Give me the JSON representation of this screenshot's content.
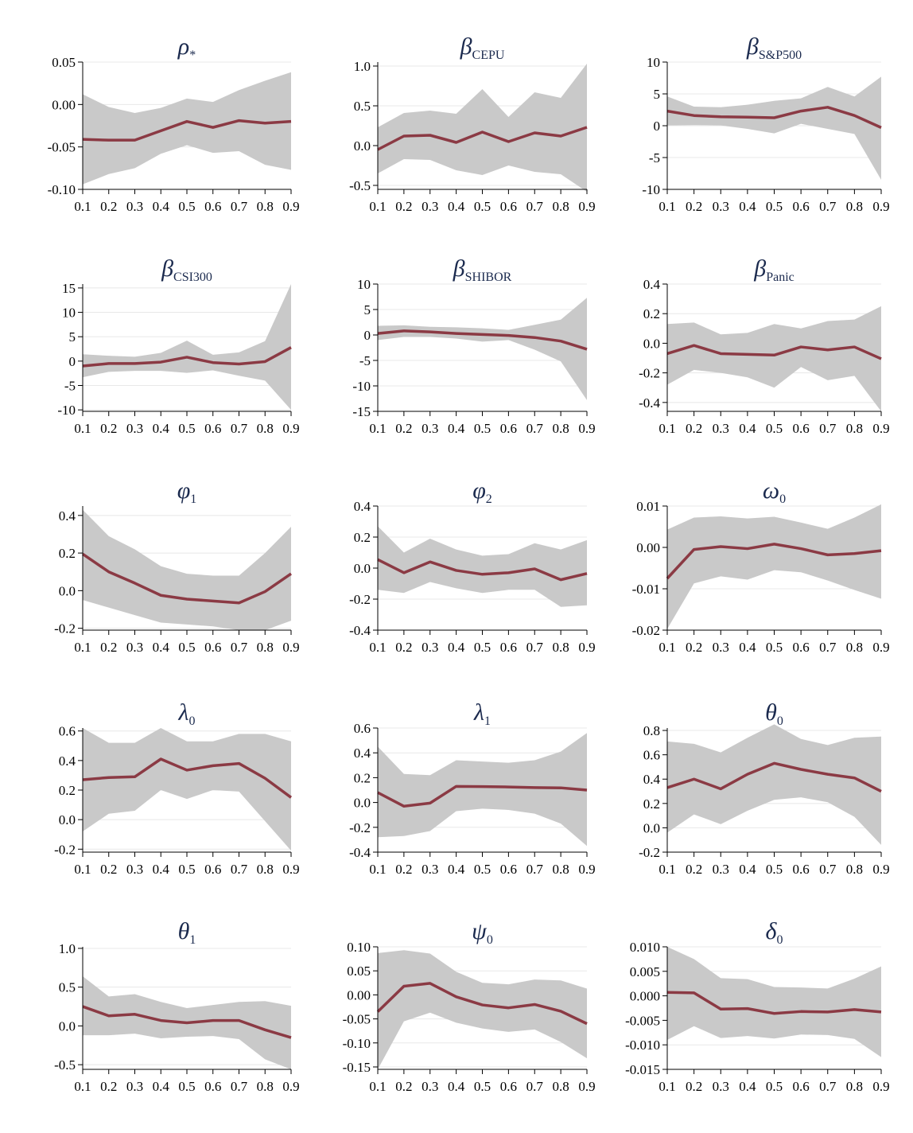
{
  "chart_data": [
    {
      "type": "line",
      "title": "ρ",
      "title_sub": "*",
      "x": [
        0.1,
        0.2,
        0.3,
        0.4,
        0.5,
        0.6,
        0.7,
        0.8,
        0.9
      ],
      "series": [
        {
          "values": [
            -0.041,
            -0.042,
            -0.042,
            -0.031,
            -0.02,
            -0.027,
            -0.019,
            -0.022,
            -0.02
          ]
        }
      ],
      "band_upper": [
        0.012,
        -0.003,
        -0.01,
        -0.004,
        0.007,
        0.003,
        0.017,
        0.028,
        0.038
      ],
      "band_lower": [
        -0.094,
        -0.082,
        -0.075,
        -0.058,
        -0.048,
        -0.057,
        -0.055,
        -0.071,
        -0.077
      ],
      "ylim": [
        -0.1,
        0.05
      ],
      "yticks": [
        -0.1,
        -0.05,
        0.0,
        0.05
      ],
      "ytick_labels": [
        "-0.10",
        "-0.05",
        "0.00",
        "0.05"
      ],
      "xtick_labels": [
        "0.1",
        "0.2",
        "0.3",
        "0.4",
        "0.5",
        "0.6",
        "0.7",
        "0.8",
        "0.9"
      ],
      "grid": true
    },
    {
      "type": "line",
      "title": "β",
      "title_sub": "CEPU",
      "x": [
        0.1,
        0.2,
        0.3,
        0.4,
        0.5,
        0.6,
        0.7,
        0.8,
        0.9
      ],
      "series": [
        {
          "values": [
            -0.05,
            0.12,
            0.13,
            0.04,
            0.17,
            0.05,
            0.16,
            0.12,
            0.23
          ]
        }
      ],
      "band_upper": [
        0.23,
        0.41,
        0.44,
        0.4,
        0.71,
        0.36,
        0.67,
        0.6,
        1.03
      ],
      "band_lower": [
        -0.35,
        -0.17,
        -0.18,
        -0.31,
        -0.37,
        -0.25,
        -0.33,
        -0.36,
        -0.58
      ],
      "ylim": [
        -0.55,
        1.05
      ],
      "yticks": [
        -0.5,
        0.0,
        0.5,
        1.0
      ],
      "ytick_labels": [
        "-0.5",
        "0.0",
        "0.5",
        "1.0"
      ],
      "xtick_labels": [
        "0.1",
        "0.2",
        "0.3",
        "0.4",
        "0.5",
        "0.6",
        "0.7",
        "0.8",
        "0.9"
      ],
      "grid": true
    },
    {
      "type": "line",
      "title": "β",
      "title_sub": "S&P500",
      "x": [
        0.1,
        0.2,
        0.3,
        0.4,
        0.5,
        0.6,
        0.7,
        0.8,
        0.9
      ],
      "series": [
        {
          "values": [
            2.3,
            1.6,
            1.4,
            1.35,
            1.25,
            2.3,
            2.9,
            1.6,
            -0.3
          ]
        }
      ],
      "band_upper": [
        4.6,
        3.0,
        2.9,
        3.3,
        3.9,
        4.3,
        6.1,
        4.6,
        7.7
      ],
      "band_lower": [
        0.05,
        0.1,
        0.05,
        -0.5,
        -1.2,
        0.3,
        -0.5,
        -1.3,
        -8.5
      ],
      "ylim": [
        -10,
        10
      ],
      "yticks": [
        -10,
        -5,
        0,
        5,
        10
      ],
      "ytick_labels": [
        "-10",
        "-5",
        "0",
        "5",
        "10"
      ],
      "xtick_labels": [
        "0.1",
        "0.2",
        "0.3",
        "0.4",
        "0.5",
        "0.6",
        "0.7",
        "0.8",
        "0.9"
      ],
      "grid": true
    },
    {
      "type": "line",
      "title": "β",
      "title_sub": "CSI300",
      "x": [
        0.1,
        0.2,
        0.3,
        0.4,
        0.5,
        0.6,
        0.7,
        0.8,
        0.9
      ],
      "series": [
        {
          "values": [
            -1.0,
            -0.5,
            -0.5,
            -0.2,
            0.8,
            -0.3,
            -0.6,
            -0.1,
            2.8
          ]
        }
      ],
      "band_upper": [
        1.4,
        1.1,
        0.9,
        1.7,
        4.2,
        1.3,
        1.8,
        4.1,
        15.8
      ],
      "band_lower": [
        -3.3,
        -2.2,
        -2.0,
        -2.0,
        -2.4,
        -1.9,
        -3.0,
        -4.0,
        -10.0
      ],
      "ylim": [
        -10.3,
        15.8
      ],
      "yticks": [
        -10,
        -5,
        0,
        5,
        10,
        15
      ],
      "ytick_labels": [
        "-10",
        "-5",
        "0",
        "5",
        "10",
        "15"
      ],
      "xtick_labels": [
        "0.1",
        "0.2",
        "0.3",
        "0.4",
        "0.5",
        "0.6",
        "0.7",
        "0.8",
        "0.9"
      ],
      "grid": true
    },
    {
      "type": "line",
      "title": "β",
      "title_sub": "SHIBOR",
      "x": [
        0.1,
        0.2,
        0.3,
        0.4,
        0.5,
        0.6,
        0.7,
        0.8,
        0.9
      ],
      "series": [
        {
          "values": [
            0.3,
            0.8,
            0.6,
            0.3,
            0.1,
            -0.1,
            -0.5,
            -1.2,
            -2.8
          ]
        }
      ],
      "band_upper": [
        1.8,
        1.9,
        1.6,
        1.5,
        1.3,
        1.0,
        2.0,
        3.0,
        7.3
      ],
      "band_lower": [
        -1.0,
        -0.4,
        -0.4,
        -0.7,
        -1.3,
        -1.0,
        -2.9,
        -5.2,
        -12.8
      ],
      "ylim": [
        -15,
        10
      ],
      "yticks": [
        -15,
        -10,
        -5,
        0,
        5,
        10
      ],
      "ytick_labels": [
        "-15",
        "-10",
        "-5",
        "0",
        "5",
        "10"
      ],
      "xtick_labels": [
        "0.1",
        "0.2",
        "0.3",
        "0.4",
        "0.5",
        "0.6",
        "0.7",
        "0.8",
        "0.9"
      ],
      "grid": true
    },
    {
      "type": "line",
      "title": "β",
      "title_sub": "Panic",
      "x": [
        0.1,
        0.2,
        0.3,
        0.4,
        0.5,
        0.6,
        0.7,
        0.8,
        0.9
      ],
      "series": [
        {
          "values": [
            -0.07,
            -0.015,
            -0.07,
            -0.075,
            -0.08,
            -0.025,
            -0.045,
            -0.025,
            -0.105
          ]
        }
      ],
      "band_upper": [
        0.13,
        0.14,
        0.06,
        0.07,
        0.13,
        0.1,
        0.15,
        0.16,
        0.25
      ],
      "band_lower": [
        -0.28,
        -0.18,
        -0.2,
        -0.23,
        -0.3,
        -0.16,
        -0.25,
        -0.22,
        -0.46
      ],
      "ylim": [
        -0.46,
        0.4
      ],
      "yticks": [
        -0.4,
        -0.2,
        0.0,
        0.2,
        0.4
      ],
      "ytick_labels": [
        "-0.4",
        "-0.2",
        "0.0",
        "0.2",
        "0.4"
      ],
      "xtick_labels": [
        "0.1",
        "0.2",
        "0.3",
        "0.4",
        "0.5",
        "0.6",
        "0.7",
        "0.8",
        "0.9"
      ],
      "grid": true
    },
    {
      "type": "line",
      "title": "φ",
      "title_sub": "1",
      "x": [
        0.1,
        0.2,
        0.3,
        0.4,
        0.5,
        0.6,
        0.7,
        0.8,
        0.9
      ],
      "series": [
        {
          "values": [
            0.195,
            0.1,
            0.04,
            -0.025,
            -0.045,
            -0.055,
            -0.065,
            -0.005,
            0.09
          ]
        }
      ],
      "band_upper": [
        0.43,
        0.29,
        0.22,
        0.13,
        0.09,
        0.08,
        0.08,
        0.2,
        0.34
      ],
      "band_lower": [
        -0.05,
        -0.09,
        -0.13,
        -0.17,
        -0.18,
        -0.19,
        -0.21,
        -0.21,
        -0.16
      ],
      "ylim": [
        -0.21,
        0.45
      ],
      "yticks": [
        -0.2,
        0.0,
        0.2,
        0.4
      ],
      "ytick_labels": [
        "-0.2",
        "0.0",
        "0.2",
        "0.4"
      ],
      "xtick_labels": [
        "0.1",
        "0.2",
        "0.3",
        "0.4",
        "0.5",
        "0.6",
        "0.7",
        "0.8",
        "0.9"
      ],
      "grid": true
    },
    {
      "type": "line",
      "title": "φ",
      "title_sub": "2",
      "x": [
        0.1,
        0.2,
        0.3,
        0.4,
        0.5,
        0.6,
        0.7,
        0.8,
        0.9
      ],
      "series": [
        {
          "values": [
            0.055,
            -0.03,
            0.04,
            -0.015,
            -0.04,
            -0.03,
            -0.005,
            -0.075,
            -0.035
          ]
        }
      ],
      "band_upper": [
        0.27,
        0.1,
        0.19,
        0.12,
        0.08,
        0.09,
        0.16,
        0.12,
        0.18
      ],
      "band_lower": [
        -0.14,
        -0.16,
        -0.09,
        -0.13,
        -0.16,
        -0.14,
        -0.14,
        -0.25,
        -0.24
      ],
      "ylim": [
        -0.4,
        0.4
      ],
      "yticks": [
        -0.4,
        -0.2,
        0.0,
        0.2,
        0.4
      ],
      "ytick_labels": [
        "-0.4",
        "-0.2",
        "0.0",
        "0.2",
        "0.4"
      ],
      "xtick_labels": [
        "0.1",
        "0.2",
        "0.3",
        "0.4",
        "0.5",
        "0.6",
        "0.7",
        "0.8",
        "0.9"
      ],
      "grid": true
    },
    {
      "type": "line",
      "title": "ω",
      "title_sub": "0",
      "x": [
        0.1,
        0.2,
        0.3,
        0.4,
        0.5,
        0.6,
        0.7,
        0.8,
        0.9
      ],
      "series": [
        {
          "values": [
            -0.0075,
            -0.0005,
            0.0002,
            -0.0003,
            0.0008,
            -0.0003,
            -0.0018,
            -0.0015,
            -0.0008
          ]
        }
      ],
      "band_upper": [
        0.0043,
        0.0072,
        0.0075,
        0.007,
        0.0074,
        0.006,
        0.0045,
        0.0072,
        0.0104
      ],
      "band_lower": [
        -0.0197,
        -0.0087,
        -0.007,
        -0.0078,
        -0.0055,
        -0.006,
        -0.008,
        -0.0103,
        -0.0124
      ],
      "ylim": [
        -0.02,
        0.01
      ],
      "yticks": [
        -0.02,
        -0.01,
        0.0,
        0.01
      ],
      "ytick_labels": [
        "-0.02",
        "-0.01",
        "0.00",
        "0.01"
      ],
      "xtick_labels": [
        "0.1",
        "0.2",
        "0.3",
        "0.4",
        "0.5",
        "0.6",
        "0.7",
        "0.8",
        "0.9"
      ],
      "grid": true
    },
    {
      "type": "line",
      "title": "λ",
      "title_sub": "0",
      "x": [
        0.1,
        0.2,
        0.3,
        0.4,
        0.5,
        0.6,
        0.7,
        0.8,
        0.9
      ],
      "series": [
        {
          "values": [
            0.27,
            0.285,
            0.29,
            0.41,
            0.335,
            0.365,
            0.38,
            0.28,
            0.15
          ]
        }
      ],
      "band_upper": [
        0.62,
        0.52,
        0.52,
        0.62,
        0.53,
        0.53,
        0.58,
        0.58,
        0.53
      ],
      "band_lower": [
        -0.08,
        0.04,
        0.06,
        0.2,
        0.14,
        0.2,
        0.19,
        -0.01,
        -0.21
      ],
      "ylim": [
        -0.22,
        0.62
      ],
      "yticks": [
        -0.2,
        0.0,
        0.2,
        0.4,
        0.6
      ],
      "ytick_labels": [
        "-0.2",
        "0.0",
        "0.2",
        "0.4",
        "0.6"
      ],
      "xtick_labels": [
        "0.1",
        "0.2",
        "0.3",
        "0.4",
        "0.5",
        "0.6",
        "0.7",
        "0.8",
        "0.9"
      ],
      "grid": true
    },
    {
      "type": "line",
      "title": "λ",
      "title_sub": "1",
      "x": [
        0.1,
        0.2,
        0.3,
        0.4,
        0.5,
        0.6,
        0.7,
        0.8,
        0.9
      ],
      "series": [
        {
          "values": [
            0.08,
            -0.03,
            -0.005,
            0.13,
            0.128,
            0.125,
            0.12,
            0.118,
            0.1
          ]
        }
      ],
      "band_upper": [
        0.45,
        0.23,
        0.22,
        0.34,
        0.33,
        0.32,
        0.34,
        0.41,
        0.56
      ],
      "band_lower": [
        -0.28,
        -0.27,
        -0.23,
        -0.07,
        -0.05,
        -0.06,
        -0.09,
        -0.17,
        -0.35
      ],
      "ylim": [
        -0.4,
        0.6
      ],
      "yticks": [
        -0.4,
        -0.2,
        0.0,
        0.2,
        0.4,
        0.6
      ],
      "ytick_labels": [
        "-0.4",
        "-0.2",
        "0.0",
        "0.2",
        "0.4",
        "0.6"
      ],
      "xtick_labels": [
        "0.1",
        "0.2",
        "0.3",
        "0.4",
        "0.5",
        "0.6",
        "0.7",
        "0.8",
        "0.9"
      ],
      "grid": true
    },
    {
      "type": "line",
      "title": "θ",
      "title_sub": "0",
      "x": [
        0.1,
        0.2,
        0.3,
        0.4,
        0.5,
        0.6,
        0.7,
        0.8,
        0.9
      ],
      "series": [
        {
          "values": [
            0.33,
            0.4,
            0.32,
            0.44,
            0.53,
            0.48,
            0.44,
            0.41,
            0.3
          ]
        }
      ],
      "band_upper": [
        0.71,
        0.69,
        0.62,
        0.74,
        0.85,
        0.73,
        0.68,
        0.74,
        0.75
      ],
      "band_lower": [
        -0.04,
        0.11,
        0.03,
        0.14,
        0.23,
        0.25,
        0.21,
        0.09,
        -0.14
      ],
      "ylim": [
        -0.2,
        0.82
      ],
      "yticks": [
        -0.2,
        0.0,
        0.2,
        0.4,
        0.6,
        0.8
      ],
      "ytick_labels": [
        "-0.2",
        "0.0",
        "0.2",
        "0.4",
        "0.6",
        "0.8"
      ],
      "xtick_labels": [
        "0.1",
        "0.2",
        "0.3",
        "0.4",
        "0.5",
        "0.6",
        "0.7",
        "0.8",
        "0.9"
      ],
      "grid": true
    },
    {
      "type": "line",
      "title": "θ",
      "title_sub": "1",
      "x": [
        0.1,
        0.2,
        0.3,
        0.4,
        0.5,
        0.6,
        0.7,
        0.8,
        0.9
      ],
      "series": [
        {
          "values": [
            0.25,
            0.13,
            0.15,
            0.07,
            0.04,
            0.07,
            0.07,
            -0.05,
            -0.15
          ]
        }
      ],
      "band_upper": [
        0.64,
        0.38,
        0.41,
        0.31,
        0.23,
        0.27,
        0.31,
        0.32,
        0.26
      ],
      "band_lower": [
        -0.12,
        -0.12,
        -0.1,
        -0.16,
        -0.14,
        -0.13,
        -0.17,
        -0.43,
        -0.56
      ],
      "ylim": [
        -0.56,
        1.02
      ],
      "yticks": [
        -0.5,
        0.0,
        0.5,
        1.0
      ],
      "ytick_labels": [
        "-0.5",
        "0.0",
        "0.5",
        "1.0"
      ],
      "xtick_labels": [
        "0.1",
        "0.2",
        "0.3",
        "0.4",
        "0.5",
        "0.6",
        "0.7",
        "0.8",
        "0.9"
      ],
      "grid": true
    },
    {
      "type": "line",
      "title": "ψ",
      "title_sub": "0",
      "x": [
        0.1,
        0.2,
        0.3,
        0.4,
        0.5,
        0.6,
        0.7,
        0.8,
        0.9
      ],
      "series": [
        {
          "values": [
            -0.035,
            0.018,
            0.024,
            -0.004,
            -0.021,
            -0.027,
            -0.02,
            -0.034,
            -0.06
          ]
        }
      ],
      "band_upper": [
        0.087,
        0.093,
        0.086,
        0.048,
        0.025,
        0.022,
        0.032,
        0.03,
        0.013
      ],
      "band_lower": [
        -0.155,
        -0.055,
        -0.037,
        -0.058,
        -0.07,
        -0.077,
        -0.072,
        -0.098,
        -0.132
      ],
      "ylim": [
        -0.155,
        0.1
      ],
      "yticks": [
        -0.15,
        -0.1,
        -0.05,
        0.0,
        0.05,
        0.1
      ],
      "ytick_labels": [
        "-0.15",
        "-0.10",
        "-0.05",
        "0.00",
        "0.05",
        "0.10"
      ],
      "xtick_labels": [
        "0.1",
        "0.2",
        "0.3",
        "0.4",
        "0.5",
        "0.6",
        "0.7",
        "0.8",
        "0.9"
      ],
      "grid": true
    },
    {
      "type": "line",
      "title": "δ",
      "title_sub": "0",
      "x": [
        0.1,
        0.2,
        0.3,
        0.4,
        0.5,
        0.6,
        0.7,
        0.8,
        0.9
      ],
      "series": [
        {
          "values": [
            0.0007,
            0.0006,
            -0.0027,
            -0.0026,
            -0.0036,
            -0.0032,
            -0.0033,
            -0.0028,
            -0.0033
          ]
        }
      ],
      "band_upper": [
        0.01,
        0.0075,
        0.0036,
        0.0034,
        0.0018,
        0.0017,
        0.0015,
        0.0035,
        0.006
      ],
      "band_lower": [
        -0.009,
        -0.0062,
        -0.0086,
        -0.0082,
        -0.0087,
        -0.0079,
        -0.008,
        -0.0088,
        -0.0125
      ],
      "ylim": [
        -0.015,
        0.01
      ],
      "yticks": [
        -0.015,
        -0.01,
        -0.005,
        0.0,
        0.005,
        0.01
      ],
      "ytick_labels": [
        "-0.015",
        "-0.010",
        "-0.005",
        "0.000",
        "0.005",
        "0.010"
      ],
      "xtick_labels": [
        "0.1",
        "0.2",
        "0.3",
        "0.4",
        "0.5",
        "0.6",
        "0.7",
        "0.8",
        "0.9"
      ],
      "grid": true
    }
  ]
}
